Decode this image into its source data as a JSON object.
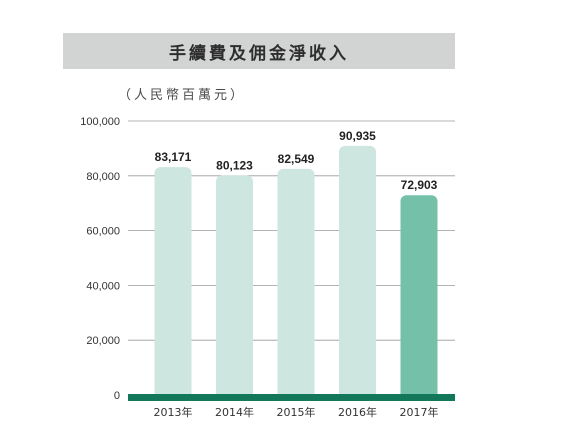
{
  "chart_data": {
    "type": "bar",
    "title": "手續費及佣金淨收入",
    "unit": "（人民幣百萬元）",
    "categories": [
      "2013年",
      "2014年",
      "2015年",
      "2016年",
      "2017年"
    ],
    "values": [
      83171,
      80123,
      82549,
      90935,
      72903
    ],
    "value_labels": [
      "83,171",
      "80,123",
      "82,549",
      "90,935",
      "72,903"
    ],
    "yticks": [
      0,
      20000,
      40000,
      60000,
      80000,
      100000
    ],
    "ytick_labels": [
      "0",
      "20,000",
      "40,000",
      "60,000",
      "80,000",
      "100,000"
    ],
    "ylim": [
      0,
      100000
    ],
    "grid": true,
    "colors": {
      "bar": "#cde6df",
      "bar_highlight": "#74c0a9",
      "baseline": "#13775a",
      "grid": "#9a9a9a"
    },
    "highlight_index": 4
  }
}
